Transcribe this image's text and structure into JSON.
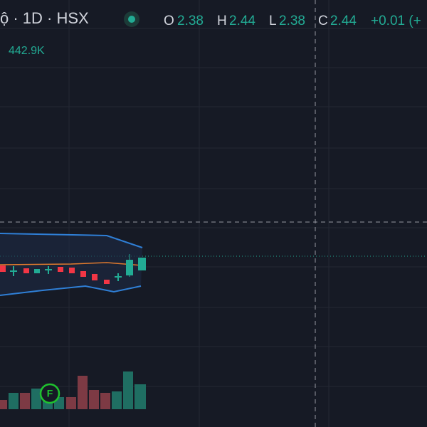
{
  "header": {
    "symbol": "ộ · 1D · HSX",
    "ohlc": [
      {
        "key": "O",
        "value": "2.38"
      },
      {
        "key": "H",
        "value": "2.44"
      },
      {
        "key": "L",
        "value": "2.38"
      },
      {
        "key": "C",
        "value": "2.44"
      }
    ],
    "change": "+0.01 (+"
  },
  "volume": {
    "label": "442.9K"
  },
  "marker": {
    "label": "F"
  }
}
